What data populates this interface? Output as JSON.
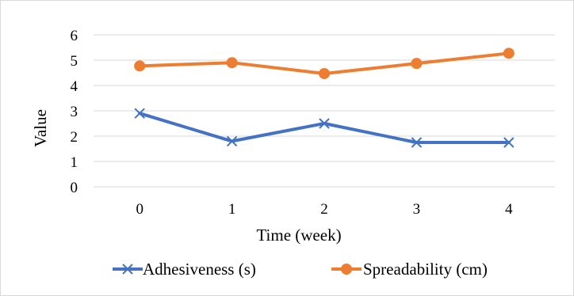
{
  "chart_data": {
    "type": "line",
    "title": "",
    "xlabel": "Time (week)",
    "ylabel": "Value",
    "categories": [
      "0",
      "1",
      "2",
      "3",
      "4"
    ],
    "ylim": [
      0,
      6
    ],
    "yticks": [
      "0",
      "1",
      "2",
      "3",
      "4",
      "5",
      "6"
    ],
    "grid": true,
    "legend_position": "bottom",
    "series": [
      {
        "name": "Adhesiveness (s)",
        "values": [
          2.9,
          1.8,
          2.5,
          1.75,
          1.75
        ],
        "color": "#4472c4",
        "marker": "x"
      },
      {
        "name": "Spreadability (cm)",
        "values": [
          4.77,
          4.9,
          4.47,
          4.87,
          5.27
        ],
        "color": "#ed7d31",
        "marker": "circle"
      }
    ]
  }
}
